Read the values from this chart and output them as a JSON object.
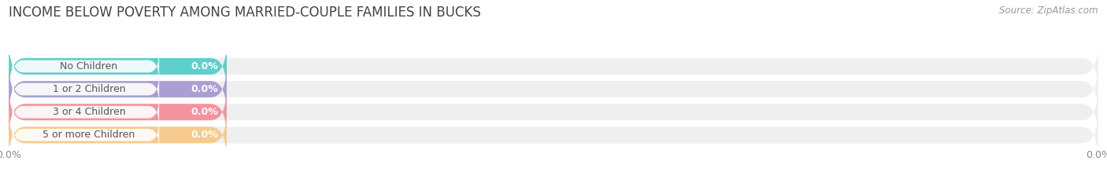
{
  "title": "INCOME BELOW POVERTY AMONG MARRIED-COUPLE FAMILIES IN BUCKS",
  "source": "Source: ZipAtlas.com",
  "categories": [
    "No Children",
    "1 or 2 Children",
    "3 or 4 Children",
    "5 or more Children"
  ],
  "values": [
    0.0,
    0.0,
    0.0,
    0.0
  ],
  "bar_colors": [
    "#5ecfca",
    "#a99fd4",
    "#f4939e",
    "#f7ca8e"
  ],
  "bar_bg_color": "#efefef",
  "background_color": "#ffffff",
  "title_fontsize": 12,
  "label_fontsize": 9,
  "value_label_color": "#ffffff",
  "source_color": "#999999",
  "tick_label_color": "#888888",
  "grid_color": "#cccccc",
  "xlim_max": 100.0,
  "xtick_positions": [
    0.0,
    100.0
  ],
  "xtick_labels": [
    "0.0%",
    "0.0%"
  ]
}
